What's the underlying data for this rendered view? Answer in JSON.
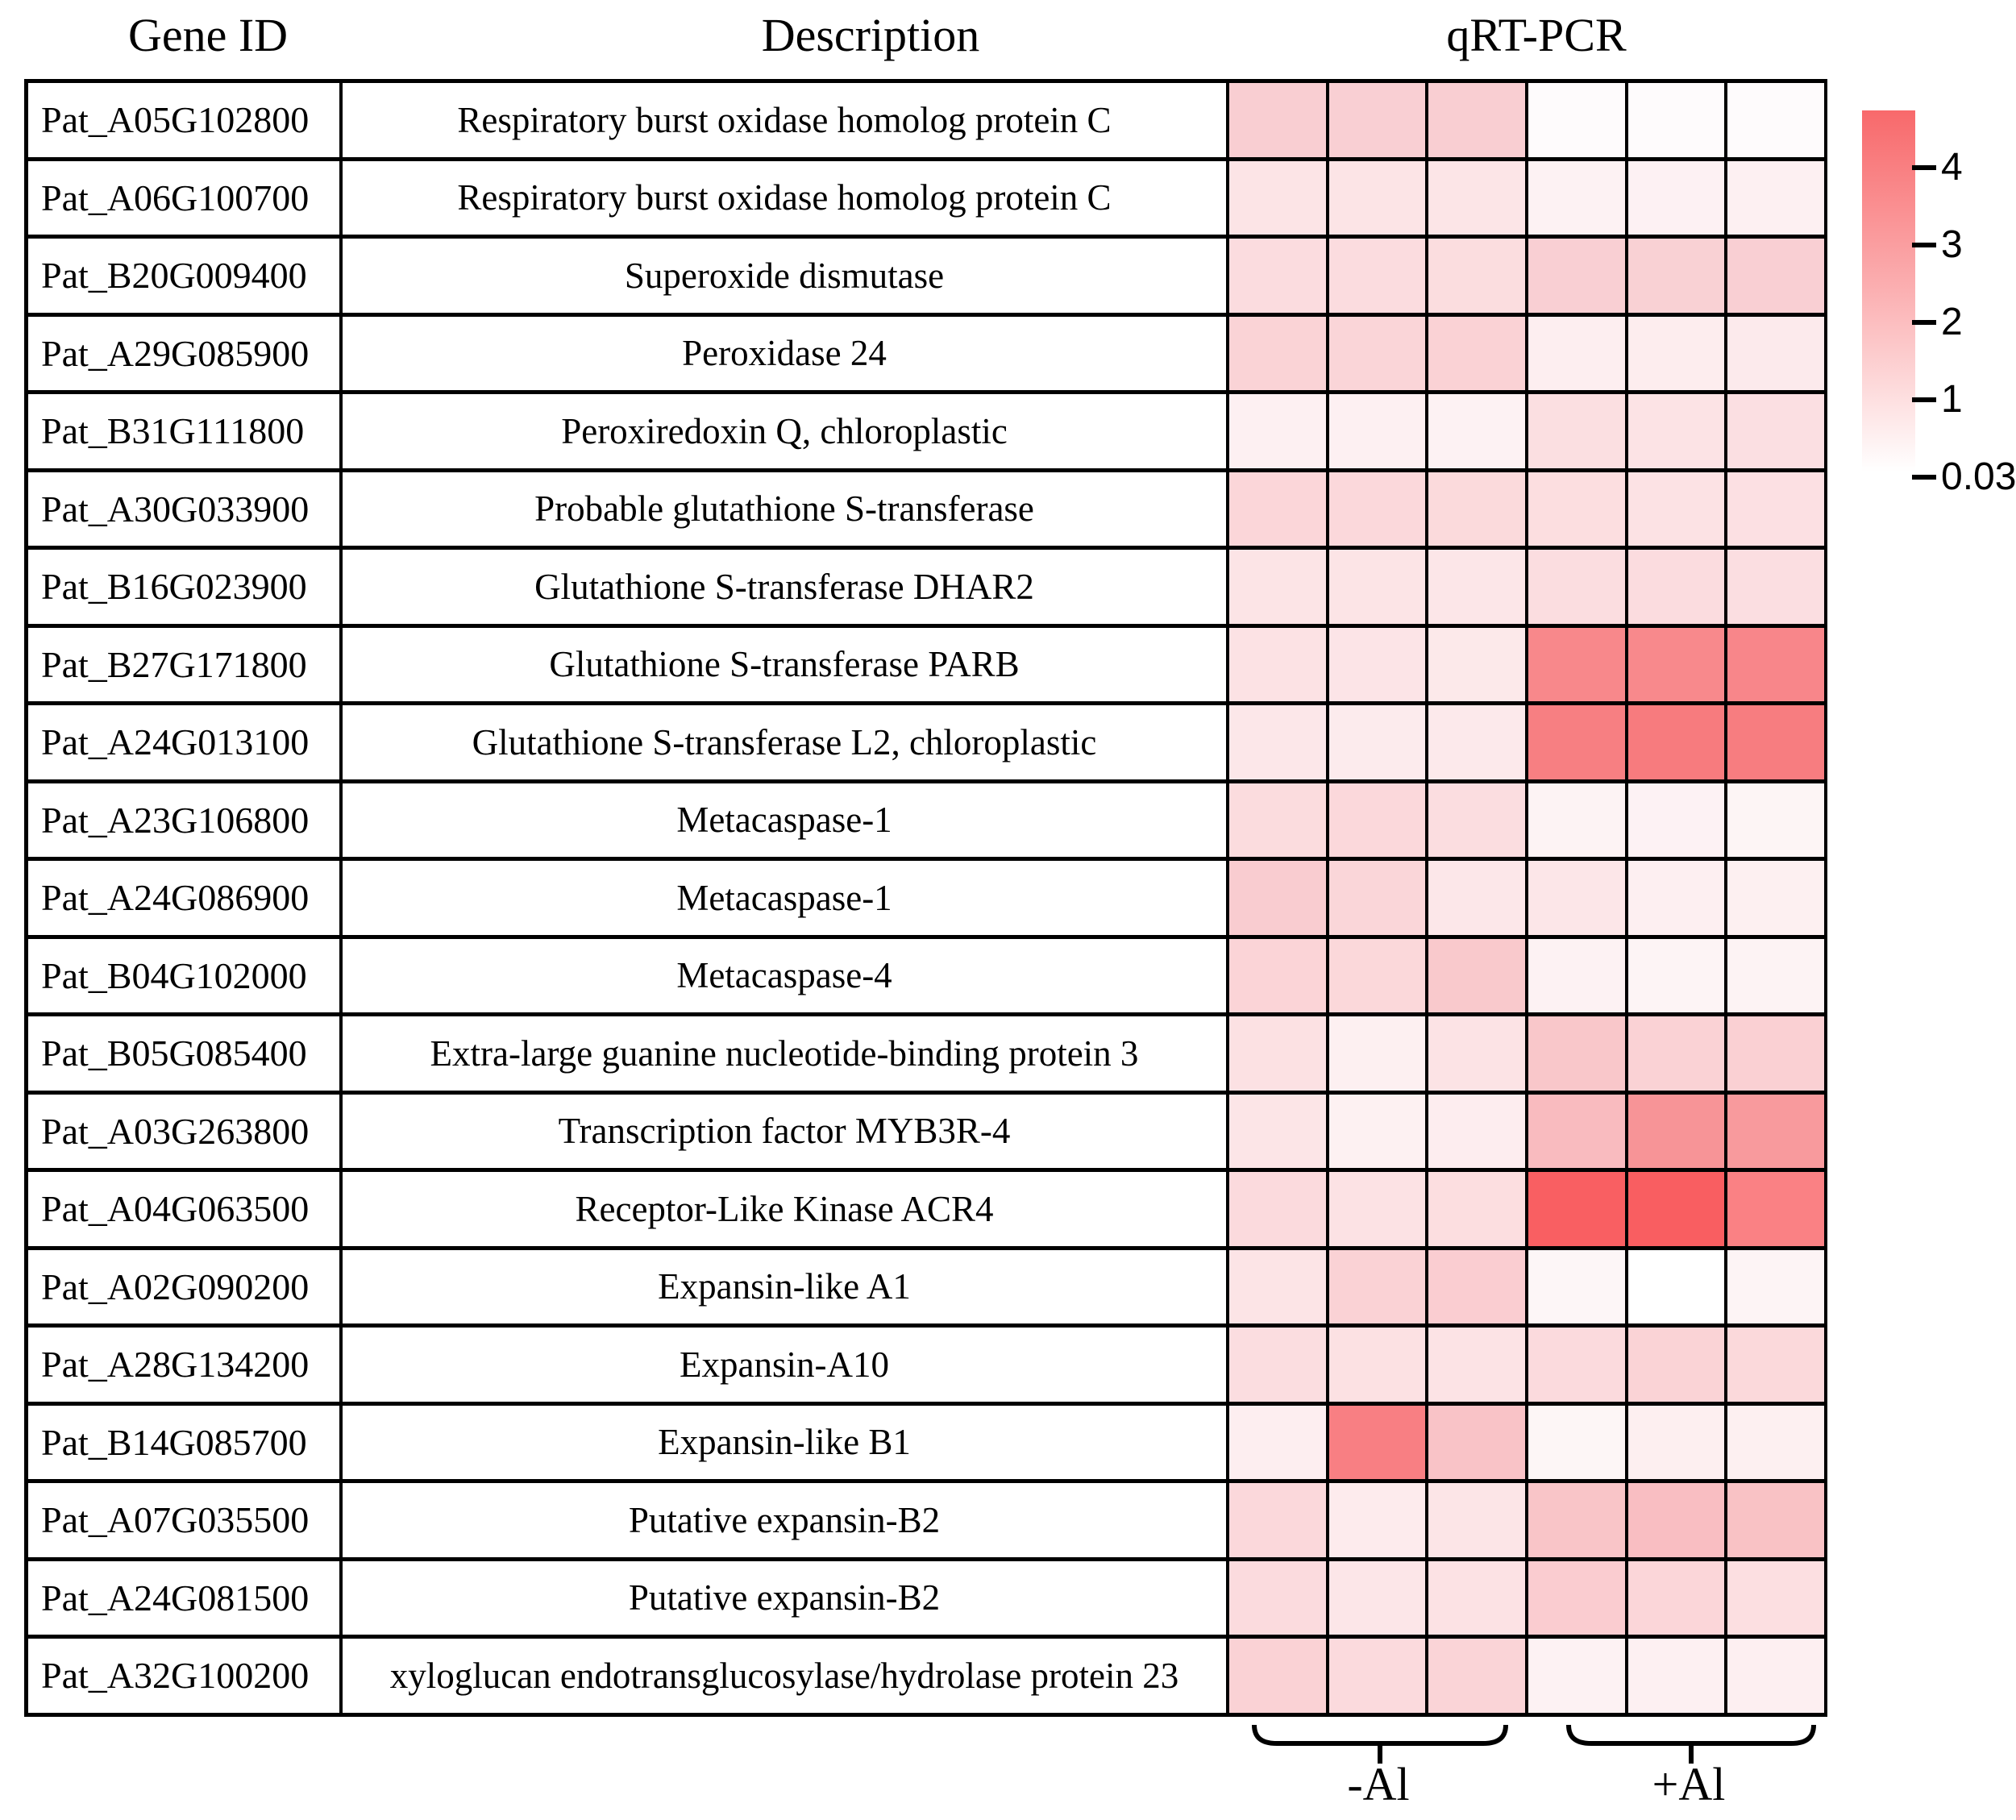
{
  "figure": {
    "headers": {
      "gene_id": "Gene ID",
      "description": "Description",
      "qrt_pcr": "qRT-PCR"
    },
    "group_labels": {
      "minus_al": "-Al",
      "plus_al": "+Al"
    },
    "legend": {
      "ticks": [
        "4",
        "3",
        "2",
        "1",
        "0.03"
      ],
      "top_color": "#f8696b",
      "bottom_color": "#ffffff"
    }
  },
  "chart_data": {
    "type": "heatmap",
    "title": "qRT-PCR",
    "xlabel": "",
    "ylabel": "",
    "grid": true,
    "legend_position": "right",
    "column_groups": [
      {
        "label": "-Al",
        "columns": 3
      },
      {
        "label": "+Al",
        "columns": 3
      }
    ],
    "color_scale": {
      "min_value": 0.03,
      "max_value": 5,
      "min_color": "#ffffff",
      "max_color": "#f8696b",
      "legend_ticks": [
        4,
        3,
        2,
        1,
        0.03
      ]
    },
    "rows": [
      {
        "gene_id": "Pat_A05G102800",
        "description": "Respiratory burst oxidase homolog protein C",
        "values": [
          1.5,
          1.5,
          1.5,
          0.1,
          0.1,
          0.1
        ],
        "colors": [
          "#f9ced2",
          "#f9cfd3",
          "#f9ced2",
          "#fefbfc",
          "#fefbfc",
          "#fefbfc"
        ]
      },
      {
        "gene_id": "Pat_A06G100700",
        "description": "Respiratory burst oxidase homolog protein C",
        "values": [
          0.8,
          0.8,
          0.8,
          0.4,
          0.4,
          0.4
        ],
        "colors": [
          "#fce4e6",
          "#fce4e6",
          "#fce5e7",
          "#fdf2f3",
          "#fdf1f3",
          "#fdf0f2"
        ]
      },
      {
        "gene_id": "Pat_B20G009400",
        "description": "Superoxide dismutase",
        "values": [
          1.0,
          1.0,
          1.0,
          1.5,
          1.4,
          1.5
        ],
        "colors": [
          "#fbdcdf",
          "#fbdcdf",
          "#fbdddf",
          "#f9cfd3",
          "#f9d1d4",
          "#f9cfd3"
        ]
      },
      {
        "gene_id": "Pat_A29G085900",
        "description": "Peroxidase 24",
        "values": [
          1.3,
          1.2,
          1.3,
          0.5,
          0.5,
          0.6
        ],
        "colors": [
          "#fad3d6",
          "#fad5d8",
          "#fad2d5",
          "#fdeef0",
          "#fdedee",
          "#fceaec"
        ]
      },
      {
        "gene_id": "Pat_B31G111800",
        "description": "Peroxiredoxin Q, chloroplastic",
        "values": [
          0.4,
          0.4,
          0.4,
          1.0,
          0.8,
          1.0
        ],
        "colors": [
          "#fdf0f2",
          "#fdf0f2",
          "#fdf2f3",
          "#fbdfe1",
          "#fce3e5",
          "#fbdfe2"
        ]
      },
      {
        "gene_id": "Pat_A30G033900",
        "description": "Probable glutathione S-transferase",
        "values": [
          1.2,
          1.2,
          1.1,
          1.0,
          0.9,
          0.9
        ],
        "colors": [
          "#fbd6d9",
          "#fbd8db",
          "#fbdadc",
          "#fcdee0",
          "#fce2e4",
          "#fce0e3"
        ]
      },
      {
        "gene_id": "Pat_B16G023900",
        "description": "Glutathione S-transferase DHAR2",
        "values": [
          0.8,
          0.8,
          0.7,
          1.0,
          1.0,
          0.9
        ],
        "colors": [
          "#fce4e6",
          "#fce4e6",
          "#fce6e8",
          "#fbdde0",
          "#fbdcdf",
          "#fbdee1"
        ]
      },
      {
        "gene_id": "Pat_B27G171800",
        "description": "Glutathione S-transferase PARB",
        "values": [
          0.9,
          0.8,
          0.6,
          3.6,
          3.6,
          3.6
        ],
        "colors": [
          "#fce2e4",
          "#fce4e7",
          "#fce9ea",
          "#f8888b",
          "#f8898c",
          "#f8868a"
        ]
      },
      {
        "gene_id": "Pat_A24G013100",
        "description": "Glutathione S-transferase L2, chloroplastic",
        "values": [
          0.7,
          0.6,
          0.7,
          3.9,
          4.0,
          3.9
        ],
        "colors": [
          "#fce7e9",
          "#fcebed",
          "#fce9eb",
          "#f77f82",
          "#f77b7e",
          "#f77d80"
        ]
      },
      {
        "gene_id": "Pat_A23G106800",
        "description": "Metacaspase-1",
        "values": [
          1.1,
          1.2,
          1.0,
          0.4,
          0.4,
          0.3
        ],
        "colors": [
          "#fbdcde",
          "#fbd8db",
          "#fbdde0",
          "#fdf3f4",
          "#fdf2f4",
          "#fdf5f5"
        ]
      },
      {
        "gene_id": "Pat_A24G086900",
        "description": "Metacaspase-1",
        "values": [
          1.5,
          1.2,
          0.7,
          0.7,
          0.5,
          0.4
        ],
        "colors": [
          "#f9ccd0",
          "#fad6d9",
          "#fce7e9",
          "#fce6e8",
          "#fdeff1",
          "#fdf0f1"
        ]
      },
      {
        "gene_id": "Pat_B04G102000",
        "description": "Metacaspase-4",
        "values": [
          1.3,
          1.2,
          1.6,
          0.4,
          0.3,
          0.4
        ],
        "colors": [
          "#fbd4d7",
          "#fbd8da",
          "#f9c9cc",
          "#fdf2f3",
          "#fdf4f5",
          "#fdf3f4"
        ]
      },
      {
        "gene_id": "Pat_B05G085400",
        "description": "Extra-large guanine nucleotide-binding protein 3",
        "values": [
          0.9,
          0.4,
          0.8,
          1.7,
          1.3,
          1.4
        ],
        "colors": [
          "#fce1e3",
          "#fdf0f1",
          "#fce3e5",
          "#f9c7ca",
          "#fad2d5",
          "#fad0d3"
        ]
      },
      {
        "gene_id": "Pat_A03G263800",
        "description": "Transcription factor MYB3R-4",
        "values": [
          0.8,
          0.4,
          0.5,
          2.0,
          3.2,
          3.0
        ],
        "colors": [
          "#fce5e7",
          "#fdf1f2",
          "#fdedef",
          "#f9bbbf",
          "#f79497",
          "#f89a9d"
        ]
      },
      {
        "gene_id": "Pat_A04G063500",
        "description": "Receptor-Like Kinase ACR4",
        "values": [
          1.1,
          0.9,
          1.0,
          4.8,
          4.8,
          3.8
        ],
        "colors": [
          "#fbdadd",
          "#fce2e4",
          "#fcdee0",
          "#f95f62",
          "#f95e61",
          "#fa8184"
        ]
      },
      {
        "gene_id": "Pat_A02G090200",
        "description": "Expansin-like A1",
        "values": [
          0.8,
          1.3,
          1.5,
          0.3,
          0.03,
          0.3
        ],
        "colors": [
          "#fce4e6",
          "#fad2d5",
          "#facdd1",
          "#fdf6f7",
          "#ffffff",
          "#fdf4f5"
        ]
      },
      {
        "gene_id": "Pat_A28G134200",
        "description": "Expansin-A10",
        "values": [
          1.0,
          0.9,
          0.8,
          1.1,
          1.3,
          1.1
        ],
        "colors": [
          "#fbdde0",
          "#fce1e3",
          "#fce3e5",
          "#fbdadd",
          "#fad3d6",
          "#fbd9db"
        ]
      },
      {
        "gene_id": "Pat_B14G085700",
        "description": "Expansin-like B1",
        "values": [
          0.5,
          3.8,
          1.8,
          0.3,
          0.5,
          0.4
        ],
        "colors": [
          "#fdeef0",
          "#f87f83",
          "#f9c3c7",
          "#fdf6f6",
          "#fdeff0",
          "#fdf0f1"
        ]
      },
      {
        "gene_id": "Pat_A07G035500",
        "description": "Putative expansin-B2",
        "values": [
          1.2,
          0.6,
          0.8,
          1.7,
          1.9,
          1.8
        ],
        "colors": [
          "#fbd8db",
          "#fdebed",
          "#fce5e7",
          "#f9c5c8",
          "#f9bec2",
          "#f9c2c5"
        ]
      },
      {
        "gene_id": "Pat_A24G081500",
        "description": "Putative expansin-B2",
        "values": [
          1.1,
          0.7,
          0.9,
          1.5,
          1.2,
          1.0
        ],
        "colors": [
          "#fbdbde",
          "#fce6e8",
          "#fce2e4",
          "#faccd0",
          "#fbd6d9",
          "#fcdfe1"
        ]
      },
      {
        "gene_id": "Pat_A32G100200",
        "description": "xyloglucan endotransglucosylase/hydrolase protein 23",
        "values": [
          1.3,
          1.1,
          1.3,
          0.4,
          0.4,
          0.5
        ],
        "colors": [
          "#fad2d5",
          "#fbdadd",
          "#fad4d7",
          "#fdf2f3",
          "#fdf0f2",
          "#fdeff1"
        ]
      }
    ]
  }
}
